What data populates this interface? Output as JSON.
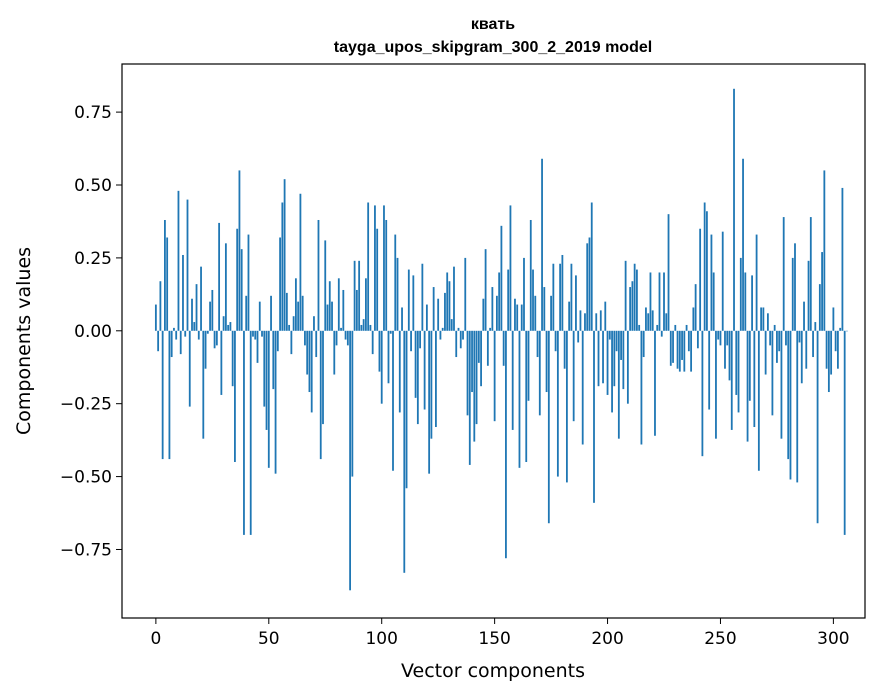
{
  "chart_data": {
    "type": "bar",
    "title": "квать",
    "subtitle": "tayga_upos_skipgram_300_2_2019 model",
    "xlabel": "Vector components",
    "ylabel": "Components values",
    "xlim": [
      -15,
      314
    ],
    "ylim": [
      -0.985,
      0.915
    ],
    "xticks": [
      0,
      50,
      100,
      150,
      200,
      250,
      300
    ],
    "yticks": [
      -0.75,
      -0.5,
      -0.25,
      0.0,
      0.25,
      0.5,
      0.75
    ],
    "ytick_labels": [
      "−0.75",
      "−0.50",
      "−0.25",
      "0.00",
      "0.25",
      "0.50",
      "0.75"
    ],
    "color": "#1f77b4",
    "grid": false,
    "legend": "none",
    "values": [
      0.09,
      -0.07,
      0.17,
      -0.44,
      0.38,
      0.32,
      -0.44,
      -0.09,
      0.01,
      -0.03,
      0.48,
      -0.08,
      0.26,
      -0.02,
      0.45,
      -0.26,
      0.11,
      0.03,
      0.16,
      -0.03,
      0.22,
      -0.37,
      -0.13,
      -0.01,
      0.1,
      0.14,
      -0.06,
      -0.05,
      0.37,
      -0.22,
      0.05,
      0.3,
      0.02,
      0.03,
      -0.19,
      -0.45,
      0.35,
      0.55,
      0.28,
      -0.7,
      0.12,
      0.33,
      -0.7,
      -0.02,
      -0.03,
      -0.11,
      0.1,
      -0.02,
      -0.26,
      -0.34,
      -0.47,
      0.12,
      -0.2,
      -0.49,
      -0.07,
      0.32,
      0.44,
      0.52,
      0.13,
      0.02,
      -0.08,
      0.05,
      0.18,
      0.1,
      0.47,
      0.12,
      -0.05,
      -0.15,
      -0.21,
      -0.28,
      0.05,
      -0.09,
      0.38,
      -0.44,
      -0.32,
      0.31,
      0.09,
      0.17,
      0.1,
      -0.15,
      -0.05,
      0.18,
      0.01,
      0.14,
      -0.03,
      -0.05,
      -0.89,
      -0.5,
      0.24,
      0.14,
      0.24,
      0.02,
      0.04,
      0.18,
      0.44,
      0.02,
      -0.08,
      0.43,
      0.35,
      -0.14,
      -0.25,
      0.43,
      0.38,
      -0.18,
      -0.01,
      -0.48,
      0.33,
      0.25,
      -0.28,
      0.08,
      -0.83,
      -0.54,
      0.21,
      -0.07,
      0.19,
      -0.23,
      -0.32,
      -0.06,
      0.23,
      -0.27,
      0.09,
      -0.49,
      -0.37,
      0.15,
      -0.33,
      0.11,
      -0.03,
      0.01,
      0.13,
      0.2,
      0.17,
      0.04,
      0.22,
      -0.09,
      0.01,
      -0.06,
      -0.03,
      0.25,
      -0.29,
      -0.46,
      -0.21,
      -0.38,
      -0.32,
      -0.11,
      -0.19,
      0.11,
      0.28,
      -0.12,
      0.01,
      0.15,
      -0.31,
      0.12,
      0.2,
      0.36,
      -0.12,
      -0.78,
      0.21,
      0.43,
      -0.34,
      0.11,
      0.09,
      -0.47,
      0.09,
      0.25,
      -0.45,
      -0.24,
      0.38,
      0.21,
      0.12,
      -0.09,
      -0.29,
      0.59,
      0.15,
      -0.21,
      -0.66,
      0.12,
      0.23,
      -0.07,
      -0.5,
      0.23,
      0.26,
      -0.13,
      -0.52,
      0.1,
      0.23,
      -0.31,
      0.19,
      -0.04,
      0.07,
      -0.39,
      0.06,
      0.3,
      0.32,
      0.44,
      -0.59,
      0.06,
      -0.19,
      0.07,
      -0.18,
      0.1,
      -0.22,
      -0.03,
      -0.28,
      -0.19,
      -0.07,
      -0.37,
      -0.1,
      -0.2,
      0.24,
      -0.25,
      0.15,
      0.17,
      0.23,
      0.21,
      0.02,
      -0.39,
      -0.09,
      0.08,
      0.06,
      0.2,
      0.07,
      -0.36,
      0.02,
      0.2,
      -0.02,
      0.2,
      0.06,
      0.4,
      -0.12,
      -0.11,
      0.02,
      -0.13,
      -0.14,
      -0.1,
      -0.14,
      0.02,
      -0.07,
      -0.14,
      0.08,
      0.16,
      -0.06,
      0.35,
      -0.43,
      0.44,
      0.41,
      -0.27,
      0.33,
      0.2,
      -0.37,
      -0.03,
      -0.05,
      0.34,
      -0.13,
      -0.05,
      -0.17,
      -0.34,
      0.83,
      -0.22,
      -0.28,
      0.25,
      0.59,
      0.2,
      -0.38,
      -0.24,
      0.19,
      -0.33,
      0.33,
      -0.48,
      0.08,
      0.08,
      -0.15,
      0.06,
      -0.05,
      -0.29,
      0.02,
      -0.11,
      -0.07,
      -0.37,
      0.39,
      -0.05,
      -0.44,
      -0.51,
      0.25,
      0.3,
      -0.52,
      -0.04,
      -0.18,
      0.1,
      -0.13,
      0.24,
      0.39,
      -0.09,
      0.03,
      -0.66,
      0.16,
      0.27,
      0.55,
      -0.13,
      -0.21,
      -0.15,
      0.08,
      -0.07,
      -0.13,
      0.01,
      0.49,
      -0.7,
      0.0
    ]
  }
}
